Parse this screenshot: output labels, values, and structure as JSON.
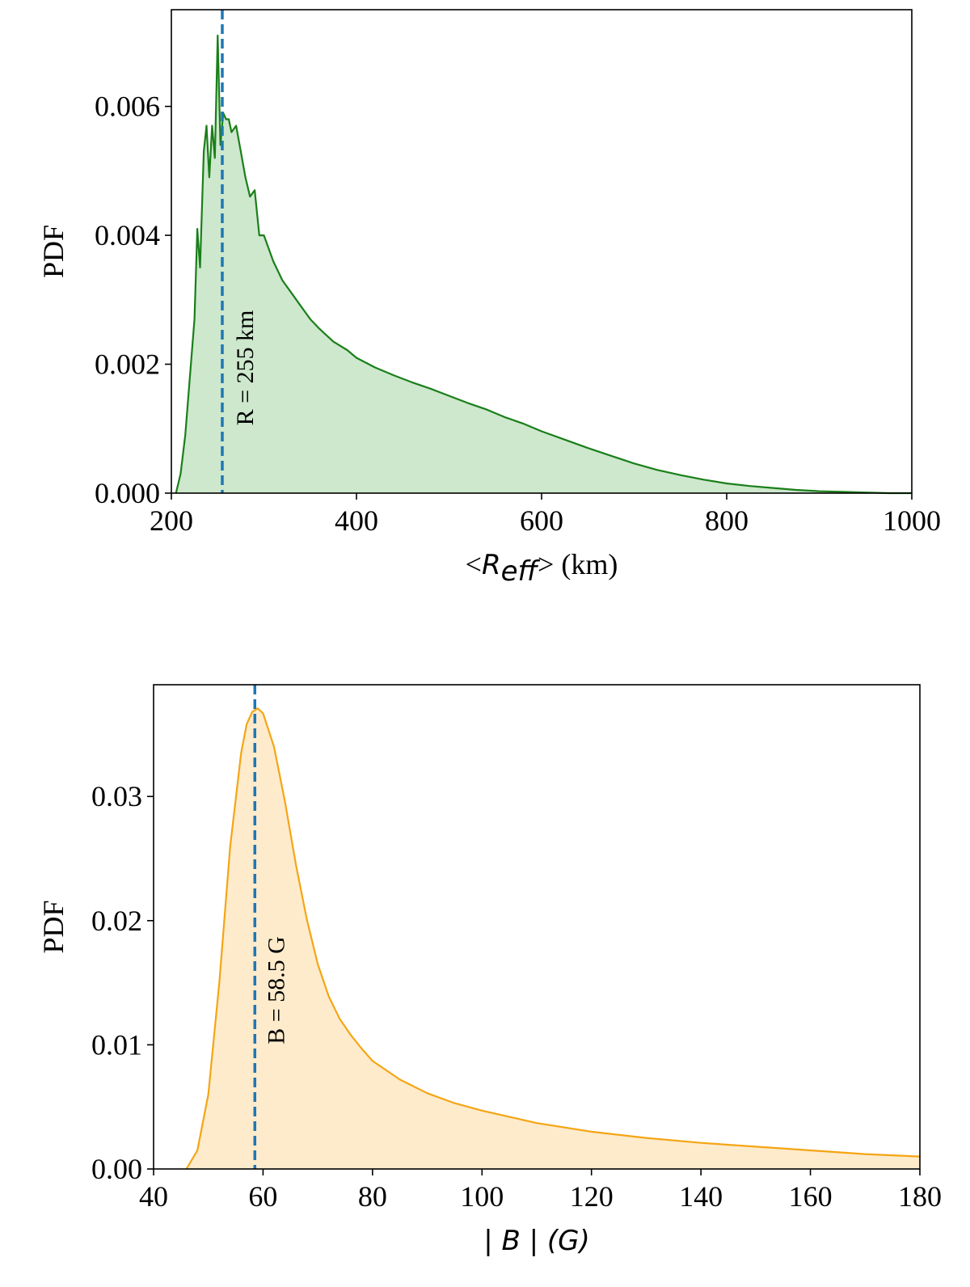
{
  "chart_data": [
    {
      "type": "area",
      "xlabel_parts": [
        "<",
        "R",
        "eff",
        ">",
        " (km)"
      ],
      "ylabel": "PDF",
      "xlim": [
        200,
        1000
      ],
      "ylim": [
        0,
        0.0075
      ],
      "xticks": [
        200,
        400,
        600,
        800,
        1000
      ],
      "xtick_labels": [
        "200",
        "400",
        "600",
        "800",
        "1000"
      ],
      "yticks": [
        0,
        0.002,
        0.004,
        0.006
      ],
      "ytick_labels": [
        "0.000",
        "0.002",
        "0.004",
        "0.006"
      ],
      "colors": {
        "line": "#1a7f1a",
        "fill": "#cde8cd",
        "marker": "#1f77b4"
      },
      "series": [
        {
          "x": [
            205,
            210,
            215,
            220,
            225,
            228,
            231,
            235,
            238,
            241,
            244,
            247,
            250,
            253,
            256,
            259,
            262,
            265,
            270,
            275,
            280,
            285,
            290,
            295,
            300,
            310,
            320,
            330,
            340,
            350,
            360,
            375,
            390,
            400,
            420,
            440,
            460,
            480,
            500,
            520,
            540,
            560,
            580,
            600,
            625,
            650,
            675,
            700,
            725,
            750,
            775,
            800,
            825,
            850,
            875,
            900,
            925,
            950,
            975,
            1000
          ],
          "y": [
            0.0,
            0.0003,
            0.0009,
            0.0018,
            0.0027,
            0.0041,
            0.0035,
            0.0053,
            0.0057,
            0.0049,
            0.0057,
            0.0052,
            0.0071,
            0.0054,
            0.0059,
            0.0058,
            0.0058,
            0.0056,
            0.0057,
            0.0053,
            0.0049,
            0.0046,
            0.0047,
            0.004,
            0.004,
            0.0036,
            0.0033,
            0.0031,
            0.0029,
            0.0027,
            0.00255,
            0.00235,
            0.00222,
            0.0021,
            0.00195,
            0.00183,
            0.00172,
            0.00162,
            0.00151,
            0.0014,
            0.0013,
            0.00118,
            0.00108,
            0.00096,
            0.00083,
            0.0007,
            0.00058,
            0.00046,
            0.00036,
            0.00028,
            0.00021,
            0.00015,
            0.00011,
            8e-05,
            5e-05,
            3e-05,
            2e-05,
            1e-05,
            0.0,
            0.0
          ]
        }
      ],
      "marker_x": 255,
      "annotation": "R = 255 km"
    },
    {
      "type": "area",
      "xlabel": "| B | (G)",
      "ylabel": "PDF",
      "xlim": [
        40,
        180
      ],
      "ylim": [
        0,
        0.039
      ],
      "xticks": [
        40,
        60,
        80,
        100,
        120,
        140,
        160,
        180
      ],
      "xtick_labels": [
        "40",
        "60",
        "80",
        "100",
        "120",
        "140",
        "160",
        "180"
      ],
      "yticks": [
        0,
        0.01,
        0.02,
        0.03
      ],
      "ytick_labels": [
        "0.00",
        "0.01",
        "0.02",
        "0.03"
      ],
      "colors": {
        "line": "#f5a514",
        "fill": "#fdebcc",
        "marker": "#1f77b4"
      },
      "series": [
        {
          "x": [
            46,
            48,
            50,
            52,
            54,
            56,
            57,
            58,
            59,
            60,
            62,
            64,
            66,
            68,
            70,
            72,
            74,
            76,
            78,
            80,
            85,
            90,
            95,
            100,
            110,
            120,
            130,
            140,
            150,
            160,
            170,
            180
          ],
          "y": [
            0.0,
            0.0015,
            0.006,
            0.015,
            0.026,
            0.0335,
            0.0358,
            0.0368,
            0.0371,
            0.0367,
            0.034,
            0.0296,
            0.0245,
            0.0201,
            0.0165,
            0.0139,
            0.0121,
            0.0108,
            0.0097,
            0.0087,
            0.0072,
            0.0061,
            0.0053,
            0.0047,
            0.0037,
            0.003,
            0.0025,
            0.0021,
            0.0018,
            0.0015,
            0.0012,
            0.001
          ]
        }
      ],
      "marker_x": 58.5,
      "annotation": "B = 58.5 G"
    }
  ]
}
